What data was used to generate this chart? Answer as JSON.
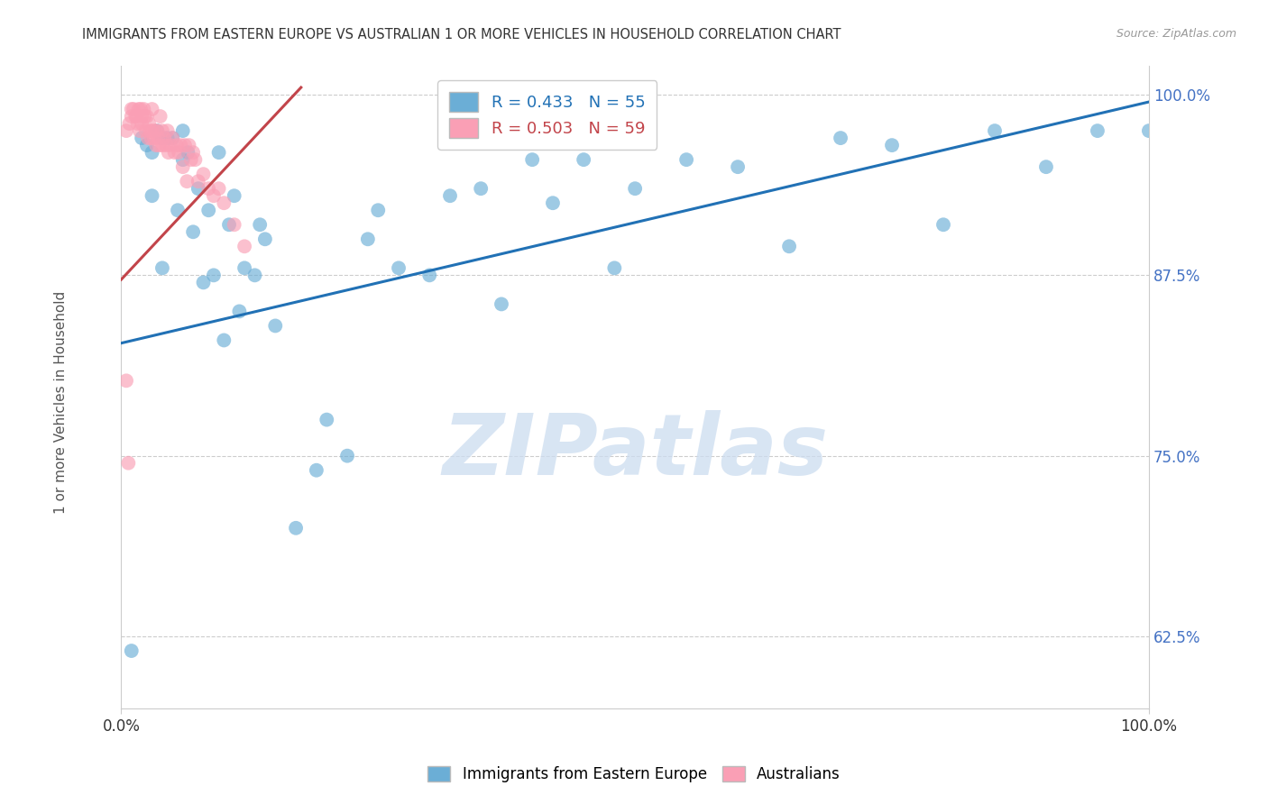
{
  "title": "IMMIGRANTS FROM EASTERN EUROPE VS AUSTRALIAN 1 OR MORE VEHICLES IN HOUSEHOLD CORRELATION CHART",
  "source": "Source: ZipAtlas.com",
  "ylabel": "1 or more Vehicles in Household",
  "xlim": [
    0.0,
    1.0
  ],
  "ylim": [
    0.575,
    1.02
  ],
  "yticks": [
    0.625,
    0.75,
    0.875,
    1.0
  ],
  "ytick_labels": [
    "62.5%",
    "75.0%",
    "87.5%",
    "100.0%"
  ],
  "blue_label": "Immigrants from Eastern Europe",
  "pink_label": "Australians",
  "blue_R": 0.433,
  "blue_N": 55,
  "pink_R": 0.503,
  "pink_N": 59,
  "blue_color": "#6baed6",
  "pink_color": "#fa9fb5",
  "blue_line_color": "#2171b5",
  "pink_line_color": "#c2444a",
  "watermark": "ZIPatlas",
  "blue_line_x": [
    0.0,
    1.0
  ],
  "blue_line_y": [
    0.828,
    0.995
  ],
  "pink_line_x": [
    0.0,
    0.175
  ],
  "pink_line_y": [
    0.872,
    1.005
  ],
  "blue_x": [
    0.01,
    0.02,
    0.025,
    0.03,
    0.03,
    0.035,
    0.04,
    0.04,
    0.045,
    0.05,
    0.055,
    0.06,
    0.06,
    0.065,
    0.07,
    0.075,
    0.08,
    0.085,
    0.09,
    0.095,
    0.1,
    0.105,
    0.11,
    0.115,
    0.12,
    0.13,
    0.135,
    0.14,
    0.15,
    0.17,
    0.19,
    0.2,
    0.22,
    0.24,
    0.25,
    0.27,
    0.3,
    0.32,
    0.35,
    0.37,
    0.4,
    0.42,
    0.45,
    0.48,
    0.5,
    0.55,
    0.6,
    0.65,
    0.7,
    0.75,
    0.8,
    0.85,
    0.9,
    0.95,
    1.0
  ],
  "blue_y": [
    0.615,
    0.97,
    0.965,
    0.93,
    0.96,
    0.975,
    0.97,
    0.88,
    0.97,
    0.97,
    0.92,
    0.955,
    0.975,
    0.96,
    0.905,
    0.935,
    0.87,
    0.92,
    0.875,
    0.96,
    0.83,
    0.91,
    0.93,
    0.85,
    0.88,
    0.875,
    0.91,
    0.9,
    0.84,
    0.7,
    0.74,
    0.775,
    0.75,
    0.9,
    0.92,
    0.88,
    0.875,
    0.93,
    0.935,
    0.855,
    0.955,
    0.925,
    0.955,
    0.88,
    0.935,
    0.955,
    0.95,
    0.895,
    0.97,
    0.965,
    0.91,
    0.975,
    0.95,
    0.975,
    0.975
  ],
  "pink_x": [
    0.005,
    0.008,
    0.01,
    0.01,
    0.012,
    0.014,
    0.015,
    0.016,
    0.017,
    0.018,
    0.019,
    0.02,
    0.02,
    0.022,
    0.023,
    0.024,
    0.025,
    0.026,
    0.027,
    0.028,
    0.029,
    0.03,
    0.03,
    0.032,
    0.033,
    0.034,
    0.035,
    0.036,
    0.037,
    0.038,
    0.04,
    0.04,
    0.042,
    0.044,
    0.045,
    0.046,
    0.048,
    0.05,
    0.052,
    0.054,
    0.056,
    0.058,
    0.06,
    0.062,
    0.064,
    0.066,
    0.068,
    0.07,
    0.072,
    0.075,
    0.08,
    0.085,
    0.09,
    0.095,
    0.1,
    0.11,
    0.12,
    0.005,
    0.007
  ],
  "pink_y": [
    0.975,
    0.98,
    0.985,
    0.99,
    0.99,
    0.985,
    0.985,
    0.98,
    0.99,
    0.975,
    0.99,
    0.985,
    0.98,
    0.99,
    0.985,
    0.975,
    0.985,
    0.97,
    0.98,
    0.975,
    0.97,
    0.99,
    0.975,
    0.97,
    0.975,
    0.965,
    0.975,
    0.97,
    0.965,
    0.985,
    0.965,
    0.975,
    0.97,
    0.965,
    0.975,
    0.96,
    0.965,
    0.97,
    0.96,
    0.965,
    0.96,
    0.965,
    0.95,
    0.965,
    0.94,
    0.965,
    0.955,
    0.96,
    0.955,
    0.94,
    0.945,
    0.935,
    0.93,
    0.935,
    0.925,
    0.91,
    0.895,
    0.802,
    0.745
  ],
  "background_color": "#ffffff",
  "grid_color": "#cccccc",
  "title_color": "#333333",
  "source_color": "#999999",
  "ylabel_color": "#555555",
  "ytick_color": "#4472c4",
  "xtick_color": "#333333"
}
